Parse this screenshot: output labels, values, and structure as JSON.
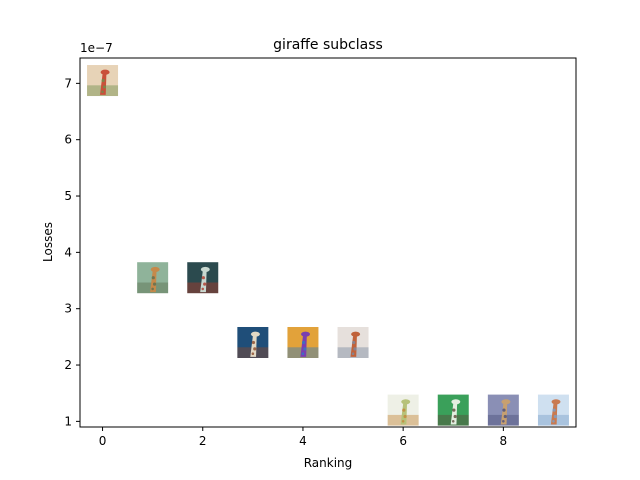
{
  "chart_data": {
    "type": "scatter",
    "title": "giraffe subclass",
    "xlabel": "Ranking",
    "ylabel": "Losses",
    "offset_text": "1e−7",
    "xlim": [
      -0.45,
      9.45
    ],
    "ylim": [
      0.9,
      7.45
    ],
    "x_ticks": [
      0,
      2,
      4,
      6,
      8
    ],
    "y_ticks": [
      1,
      2,
      3,
      4,
      5,
      6,
      7
    ],
    "grid": false,
    "marker": "image-thumbnail",
    "points": [
      {
        "x": 0,
        "y": 7.05,
        "thumb": [
          "#e7d3b7",
          "#c9503a",
          "#6f8f4e"
        ]
      },
      {
        "x": 1,
        "y": 3.55,
        "thumb": [
          "#8fb39a",
          "#c5894a",
          "#5b6f50"
        ]
      },
      {
        "x": 2,
        "y": 3.55,
        "thumb": [
          "#2b4a4e",
          "#c9d8d0",
          "#b0392a"
        ]
      },
      {
        "x": 3,
        "y": 2.4,
        "thumb": [
          "#1f4e79",
          "#e2d8c4",
          "#8b4a2b"
        ]
      },
      {
        "x": 4,
        "y": 2.4,
        "thumb": [
          "#e2a23a",
          "#7a3fb0",
          "#2f7ac4"
        ]
      },
      {
        "x": 5,
        "y": 2.4,
        "thumb": [
          "#e6e0dc",
          "#c0623a",
          "#7a8aa0"
        ]
      },
      {
        "x": 6,
        "y": 1.2,
        "thumb": [
          "#eef0e6",
          "#b7c27a",
          "#c4863a"
        ]
      },
      {
        "x": 7,
        "y": 1.2,
        "thumb": [
          "#3aa05a",
          "#e3efe1",
          "#5b4a3a"
        ]
      },
      {
        "x": 8,
        "y": 1.2,
        "thumb": [
          "#8a8fb5",
          "#c7a070",
          "#4a4f7a"
        ]
      },
      {
        "x": 9,
        "y": 1.2,
        "thumb": [
          "#cfe0f0",
          "#c97a50",
          "#7aa0c8"
        ]
      }
    ]
  }
}
